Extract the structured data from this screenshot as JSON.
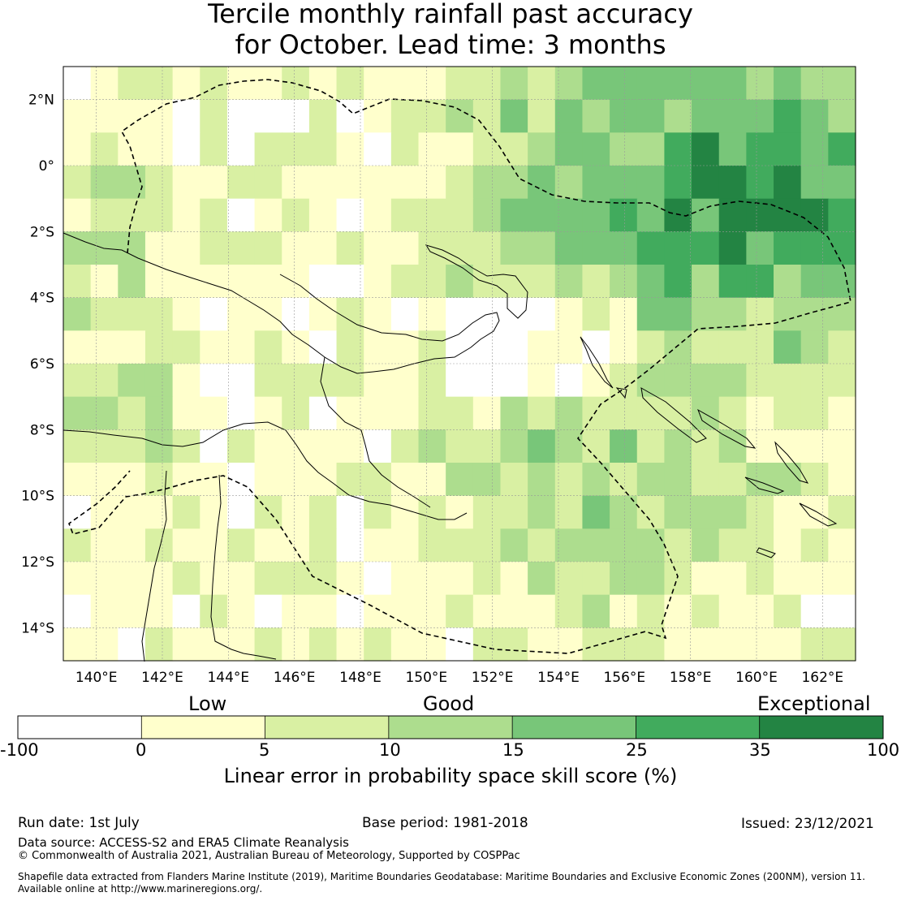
{
  "title_line1": "Tercile monthly rainfall past accuracy",
  "title_line2": "for October. Lead time: 3 months",
  "map": {
    "lon_range": [
      139,
      163
    ],
    "lat_range": [
      -15,
      3
    ],
    "lon_ticks": [
      "140°E",
      "142°E",
      "144°E",
      "146°E",
      "148°E",
      "150°E",
      "152°E",
      "154°E",
      "156°E",
      "158°E",
      "160°E",
      "162°E"
    ],
    "lat_ticks": [
      "2°N",
      "0°",
      "2°S",
      "4°S",
      "6°S",
      "8°S",
      "10°S",
      "12°S",
      "14°S"
    ],
    "grid": true
  },
  "colorbar": {
    "categories": [
      "Low",
      "Good",
      "Exceptional"
    ],
    "ticks": [
      "-100",
      "0",
      "5",
      "10",
      "15",
      "25",
      "35",
      "100"
    ],
    "colors": [
      "#ffffff",
      "#ffffcc",
      "#d9f0a3",
      "#addd8e",
      "#78c679",
      "#41ab5d",
      "#238443"
    ],
    "label": "Linear error in probability space skill score (%)"
  },
  "footer": {
    "run_date": "Run date: 1st July",
    "base_period": "Base period: 1981-2018",
    "issued": "Issued: 23/12/2021",
    "data_source": "Data source: ACCESS-S2 and ERA5 Climate Reanalysis",
    "copyright": "© Commonwealth of Australia 2021, Australian Bureau of Meteorology, Supported by COSPPac",
    "shapefile_line1": "Shapefile data extracted from Flanders Marine Institute (2019), Maritime Boundaries Geodatabase: Maritime Boundaries and Exclusive Economic Zones (200NM), version 11.",
    "shapefile_line2": "Available online at http://www.marineregions.org/."
  }
}
